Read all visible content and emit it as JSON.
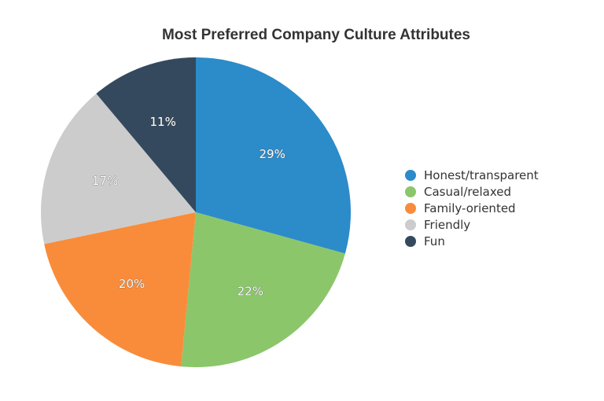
{
  "chart_data": {
    "type": "pie",
    "title": "Most Preferred Company Culture Attributes",
    "legend_position": "right",
    "slices": [
      {
        "name": "Honest/transparent",
        "value": 29,
        "label": "29%",
        "color": "#2c8bc9"
      },
      {
        "name": "Casual/relaxed",
        "value": 22,
        "label": "22%",
        "color": "#8bc66b"
      },
      {
        "name": "Family-oriented",
        "value": 20,
        "label": "20%",
        "color": "#f98c3a"
      },
      {
        "name": "Friendly",
        "value": 17,
        "label": "17%",
        "color": "#cccccc"
      },
      {
        "name": "Fun",
        "value": 11,
        "label": "11%",
        "color": "#34495e"
      }
    ]
  }
}
